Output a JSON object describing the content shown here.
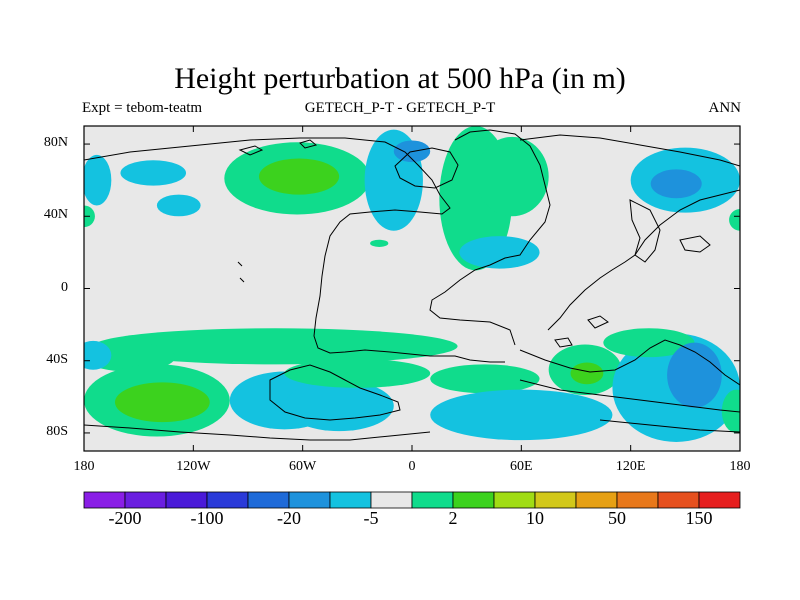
{
  "title": "Height perturbation at 500 hPa (in m)",
  "subtitle_left": "Expt = tebom-teatm",
  "subtitle_center": "GETECH_P-T - GETECH_P-T",
  "subtitle_right": "ANN",
  "chart_data": {
    "type": "heatmap",
    "title": "Height perturbation at 500 hPa (in m)",
    "projection": "cylindrical equidistant",
    "x_range": [
      -180,
      180
    ],
    "y_range": [
      -90,
      90
    ],
    "x_ticks": [
      {
        "value": -180,
        "label": "180"
      },
      {
        "value": -120,
        "label": "120W"
      },
      {
        "value": -60,
        "label": "60W"
      },
      {
        "value": 0,
        "label": "0"
      },
      {
        "value": 60,
        "label": "60E"
      },
      {
        "value": 120,
        "label": "120E"
      },
      {
        "value": 180,
        "label": "180"
      }
    ],
    "y_ticks": [
      {
        "value": 80,
        "label": "80N"
      },
      {
        "value": 40,
        "label": "40N"
      },
      {
        "value": 0,
        "label": "0"
      },
      {
        "value": -40,
        "label": "40S"
      },
      {
        "value": -80,
        "label": "80S"
      }
    ],
    "colorbar": {
      "colors": [
        "#8a1ee6",
        "#6a1ee0",
        "#4a1ad8",
        "#2a3ad8",
        "#1e6ad8",
        "#1e92dc",
        "#14c2e0",
        "#e8e8e8",
        "#10dc8c",
        "#3cd21e",
        "#a0dc14",
        "#d2c81a",
        "#e6a014",
        "#e8781a",
        "#e6501e",
        "#e61e1e"
      ],
      "labels": [
        {
          "boundary": 1,
          "text": "-200"
        },
        {
          "boundary": 3,
          "text": "-100"
        },
        {
          "boundary": 5,
          "text": "-20"
        },
        {
          "boundary": 7,
          "text": "-5"
        },
        {
          "boundary": 9,
          "text": "2"
        },
        {
          "boundary": 11,
          "text": "10"
        },
        {
          "boundary": 13,
          "text": "50"
        },
        {
          "boundary": 15,
          "text": "150"
        }
      ]
    },
    "anomalies": [
      {
        "lon": -142,
        "lat": 64,
        "rlon": 18,
        "rlat": 7,
        "level": -1
      },
      {
        "lon": -128,
        "lat": 46,
        "rlon": 12,
        "rlat": 6,
        "level": -1
      },
      {
        "lon": -173,
        "lat": 60,
        "rlon": 8,
        "rlat": 14,
        "level": -1
      },
      {
        "lon": -63,
        "lat": 61,
        "rlon": 40,
        "rlat": 20,
        "level": 1
      },
      {
        "lon": -62,
        "lat": 62,
        "rlon": 22,
        "rlat": 10,
        "level": 2
      },
      {
        "lon": -10,
        "lat": 60,
        "rlon": 16,
        "rlat": 28,
        "level": -1
      },
      {
        "lon": 0,
        "lat": 76,
        "rlon": 10,
        "rlat": 6,
        "level": -2
      },
      {
        "lon": 35,
        "lat": 50,
        "rlon": 20,
        "rlat": 40,
        "level": 1
      },
      {
        "lon": 55,
        "lat": 62,
        "rlon": 20,
        "rlat": 22,
        "level": 1
      },
      {
        "lon": 48,
        "lat": 20,
        "rlon": 22,
        "rlat": 9,
        "level": -1
      },
      {
        "lon": 150,
        "lat": 60,
        "rlon": 30,
        "rlat": 18,
        "level": -1
      },
      {
        "lon": 145,
        "lat": 58,
        "rlon": 14,
        "rlat": 8,
        "level": -2
      },
      {
        "lon": -18,
        "lat": 25,
        "rlon": 5,
        "rlat": 2,
        "level": 1
      },
      {
        "lon": -180,
        "lat": 40,
        "rlon": 6,
        "rlat": 6,
        "level": 1
      },
      {
        "lon": 180,
        "lat": 38,
        "rlon": 6,
        "rlat": 6,
        "level": 1
      },
      {
        "lon": -75,
        "lat": -32,
        "rlon": 100,
        "rlat": 10,
        "level": 1
      },
      {
        "lon": -155,
        "lat": -38,
        "rlon": 25,
        "rlat": 8,
        "level": 1
      },
      {
        "lon": -175,
        "lat": -37,
        "rlon": 10,
        "rlat": 8,
        "level": -1
      },
      {
        "lon": -140,
        "lat": -62,
        "rlon": 40,
        "rlat": 20,
        "level": 1
      },
      {
        "lon": -137,
        "lat": -63,
        "rlon": 26,
        "rlat": 11,
        "level": 2
      },
      {
        "lon": -70,
        "lat": -62,
        "rlon": 30,
        "rlat": 16,
        "level": -1
      },
      {
        "lon": -40,
        "lat": -65,
        "rlon": 30,
        "rlat": 14,
        "level": -1
      },
      {
        "lon": -30,
        "lat": -47,
        "rlon": 40,
        "rlat": 8,
        "level": 1
      },
      {
        "lon": 40,
        "lat": -50,
        "rlon": 30,
        "rlat": 8,
        "level": 1
      },
      {
        "lon": 60,
        "lat": -70,
        "rlon": 50,
        "rlat": 14,
        "level": -1
      },
      {
        "lon": 95,
        "lat": -45,
        "rlon": 20,
        "rlat": 14,
        "level": 1
      },
      {
        "lon": 96,
        "lat": -47,
        "rlon": 9,
        "rlat": 6,
        "level": 2
      },
      {
        "lon": 145,
        "lat": -55,
        "rlon": 35,
        "rlat": 30,
        "level": -1
      },
      {
        "lon": 155,
        "lat": -48,
        "rlon": 15,
        "rlat": 18,
        "level": -2
      },
      {
        "lon": 130,
        "lat": -30,
        "rlon": 25,
        "rlat": 8,
        "level": 1
      },
      {
        "lon": 178,
        "lat": -68,
        "rlon": 8,
        "rlat": 12,
        "level": 1
      }
    ]
  }
}
